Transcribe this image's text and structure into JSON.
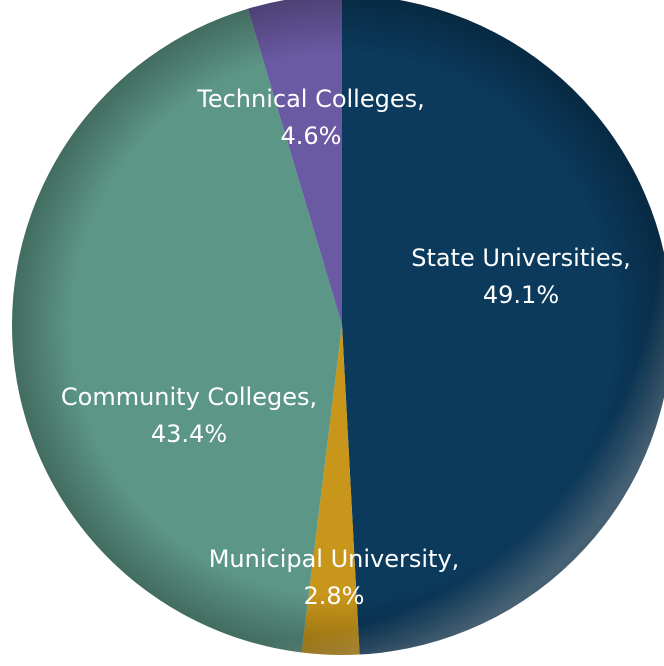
{
  "chart_data": {
    "type": "pie",
    "title": "",
    "label_color": "#ffffff",
    "slices": [
      {
        "label": "State Universities,",
        "value_text": "49.1%",
        "value": 49.1,
        "color": "#0b3a5c"
      },
      {
        "label": "Municipal University,",
        "value_text": "2.8%",
        "value": 2.8,
        "color": "#c8961a"
      },
      {
        "label": "Community Colleges,",
        "value_text": "43.4%",
        "value": 43.4,
        "color": "#5c9686"
      },
      {
        "label": "Technical Colleges,",
        "value_text": "4.6%",
        "value": 4.6,
        "color": "#6a5aa3"
      }
    ]
  }
}
